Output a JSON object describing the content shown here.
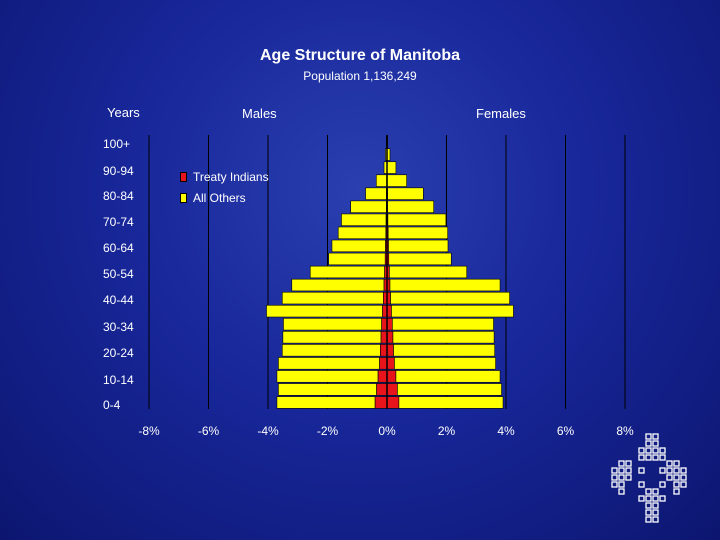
{
  "title": "Age Structure of Manitoba",
  "subtitle": "Population 1,136,249",
  "headers": {
    "years": "Years",
    "males": "Males",
    "females": "Females"
  },
  "colors": {
    "treaty": "#e8141c",
    "others": "#ffff00",
    "grid": "#000000"
  },
  "chart_data": {
    "type": "bar",
    "title": "Age Structure of Manitoba",
    "subtitle": "Population 1,136,249",
    "xlim": [
      -8,
      8
    ],
    "x_ticks": [
      "-8%",
      "-6%",
      "-4%",
      "-2%",
      "0%",
      "2%",
      "4%",
      "6%",
      "8%"
    ],
    "y_tick_labels": [
      "100+",
      "90-94",
      "80-84",
      "70-74",
      "60-64",
      "50-54",
      "40-44",
      "30-34",
      "20-24",
      "10-14",
      "0-4"
    ],
    "legend": {
      "position": "top-left",
      "entries": [
        "Treaty Indians",
        "All Others"
      ]
    },
    "categories": [
      "0-4",
      "5-9",
      "10-14",
      "15-19",
      "20-24",
      "25-29",
      "30-34",
      "35-39",
      "40-44",
      "45-49",
      "50-54",
      "55-59",
      "60-64",
      "65-69",
      "70-74",
      "75-79",
      "80-84",
      "85-89",
      "90-94",
      "95-99",
      "100+"
    ],
    "series": [
      {
        "name": "Treaty Indians",
        "sex": "Males",
        "values": [
          0.4,
          0.35,
          0.3,
          0.25,
          0.22,
          0.2,
          0.18,
          0.15,
          0.12,
          0.1,
          0.08,
          0.06,
          0.05,
          0.04,
          0.03,
          0.02,
          0.02,
          0.01,
          0.0,
          0.0,
          0.0
        ]
      },
      {
        "name": "All Others",
        "sex": "Males",
        "values": [
          3.3,
          3.3,
          3.4,
          3.4,
          3.3,
          3.3,
          3.3,
          3.9,
          3.4,
          3.1,
          2.5,
          1.9,
          1.8,
          1.6,
          1.5,
          1.2,
          0.7,
          0.35,
          0.1,
          0.05,
          0.02
        ]
      },
      {
        "name": "Treaty Indians",
        "sex": "Females",
        "values": [
          0.4,
          0.35,
          0.3,
          0.25,
          0.22,
          0.2,
          0.18,
          0.15,
          0.12,
          0.1,
          0.08,
          0.06,
          0.05,
          0.04,
          0.03,
          0.02,
          0.02,
          0.01,
          0.0,
          0.0,
          0.0
        ]
      },
      {
        "name": "All Others",
        "sex": "Females",
        "values": [
          3.5,
          3.5,
          3.5,
          3.4,
          3.4,
          3.4,
          3.4,
          4.1,
          4.0,
          3.7,
          2.6,
          2.1,
          2.0,
          2.0,
          1.95,
          1.55,
          1.2,
          0.65,
          0.3,
          0.1,
          0.02
        ]
      }
    ]
  }
}
